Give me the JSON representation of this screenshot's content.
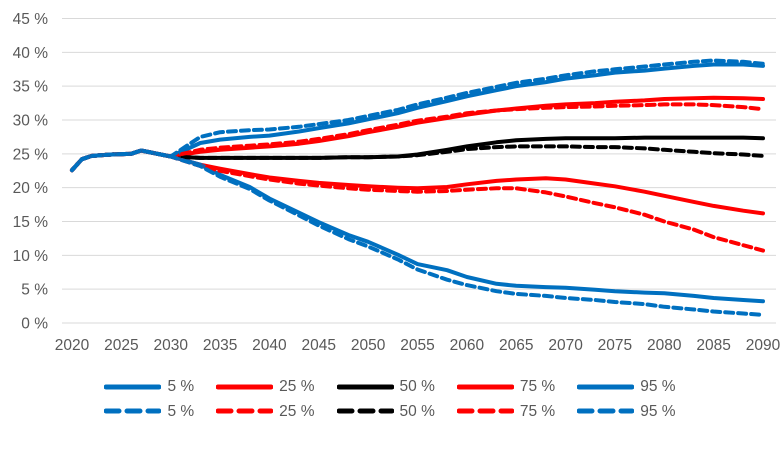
{
  "colors": {
    "blue": "#0070C0",
    "red": "#FF0000",
    "black": "#000000",
    "axis_text": "#595959",
    "gridline": "#D9D9D9",
    "background": "#FFFFFF"
  },
  "chart_data": {
    "type": "line",
    "title": "",
    "xlabel": "",
    "ylabel": "",
    "grid": true,
    "legend_position": "bottom",
    "ylim": [
      0,
      45
    ],
    "xlim": [
      2020,
      2090
    ],
    "ytick_suffix": " %",
    "yticks": [
      0,
      5,
      10,
      15,
      20,
      25,
      30,
      35,
      40,
      45
    ],
    "xticks": [
      2020,
      2025,
      2030,
      2035,
      2040,
      2045,
      2050,
      2055,
      2060,
      2065,
      2070,
      2075,
      2080,
      2085,
      2090
    ],
    "x": [
      2020,
      2021,
      2022,
      2024,
      2026,
      2027,
      2028,
      2030,
      2033,
      2035,
      2038,
      2040,
      2043,
      2045,
      2048,
      2050,
      2053,
      2055,
      2058,
      2060,
      2063,
      2065,
      2068,
      2070,
      2073,
      2075,
      2078,
      2080,
      2083,
      2085,
      2088,
      2090
    ],
    "series": [
      {
        "name": "50 %",
        "style": "solid",
        "color": "#000000",
        "values": [
          22.6,
          24.2,
          24.7,
          24.9,
          25.0,
          25.5,
          25.2,
          24.6,
          24.4,
          24.4,
          24.4,
          24.4,
          24.4,
          24.4,
          24.5,
          24.5,
          24.6,
          24.9,
          25.6,
          26.1,
          26.7,
          27.0,
          27.2,
          27.3,
          27.3,
          27.3,
          27.4,
          27.4,
          27.4,
          27.4,
          27.4,
          27.3
        ]
      },
      {
        "name": "75 %",
        "style": "solid",
        "color": "#FF0000",
        "values": [
          22.6,
          24.2,
          24.7,
          24.9,
          25.0,
          25.5,
          25.2,
          24.6,
          25.3,
          25.6,
          25.9,
          26.1,
          26.5,
          26.9,
          27.6,
          28.2,
          29.0,
          29.6,
          30.3,
          30.8,
          31.4,
          31.7,
          32.1,
          32.3,
          32.5,
          32.7,
          32.9,
          33.1,
          33.2,
          33.3,
          33.2,
          33.1
        ]
      },
      {
        "name": "25 %",
        "style": "solid",
        "color": "#FF0000",
        "values": [
          22.6,
          24.2,
          24.7,
          24.9,
          25.0,
          25.5,
          25.2,
          24.6,
          23.4,
          22.8,
          22.0,
          21.5,
          21.0,
          20.7,
          20.4,
          20.2,
          20.0,
          19.9,
          20.1,
          20.5,
          21.0,
          21.2,
          21.4,
          21.2,
          20.6,
          20.2,
          19.4,
          18.8,
          17.9,
          17.3,
          16.6,
          16.2
        ]
      },
      {
        "name": "95 %",
        "style": "solid",
        "color": "#0070C0",
        "values": [
          22.6,
          24.2,
          24.7,
          24.9,
          25.0,
          25.5,
          25.2,
          24.6,
          26.6,
          27.1,
          27.5,
          27.7,
          28.3,
          28.8,
          29.5,
          30.1,
          31.0,
          31.8,
          32.8,
          33.5,
          34.4,
          35.0,
          35.6,
          36.1,
          36.6,
          37.0,
          37.3,
          37.6,
          38.0,
          38.2,
          38.2,
          38.0
        ]
      },
      {
        "name": "5 %",
        "style": "solid",
        "color": "#0070C0",
        "values": [
          22.6,
          24.2,
          24.7,
          24.9,
          25.0,
          25.5,
          25.2,
          24.6,
          23.4,
          21.9,
          20.1,
          18.4,
          16.3,
          14.9,
          13.0,
          12.0,
          10.1,
          8.7,
          7.8,
          6.8,
          5.8,
          5.5,
          5.3,
          5.2,
          4.9,
          4.7,
          4.5,
          4.4,
          4.0,
          3.7,
          3.4,
          3.2
        ]
      },
      {
        "name": "50 %",
        "style": "dashed",
        "color": "#000000",
        "values": [
          22.6,
          24.2,
          24.7,
          24.9,
          25.0,
          25.5,
          25.2,
          24.6,
          24.4,
          24.4,
          24.4,
          24.4,
          24.4,
          24.4,
          24.5,
          24.5,
          24.6,
          24.8,
          25.3,
          25.7,
          26.0,
          26.1,
          26.1,
          26.1,
          26.0,
          26.0,
          25.8,
          25.6,
          25.3,
          25.1,
          24.9,
          24.7
        ]
      },
      {
        "name": "75 %",
        "style": "dashed",
        "color": "#FF0000",
        "values": [
          22.6,
          24.2,
          24.7,
          24.9,
          25.0,
          25.5,
          25.2,
          24.6,
          25.6,
          25.9,
          26.2,
          26.4,
          26.8,
          27.2,
          27.9,
          28.5,
          29.3,
          29.9,
          30.5,
          31.0,
          31.4,
          31.6,
          31.8,
          31.9,
          32.0,
          32.1,
          32.2,
          32.3,
          32.3,
          32.2,
          31.9,
          31.6
        ]
      },
      {
        "name": "25 %",
        "style": "dashed",
        "color": "#FF0000",
        "values": [
          22.6,
          24.2,
          24.7,
          24.9,
          25.0,
          25.5,
          25.2,
          24.6,
          23.2,
          22.5,
          21.7,
          21.2,
          20.6,
          20.3,
          19.9,
          19.7,
          19.5,
          19.4,
          19.5,
          19.7,
          19.9,
          19.9,
          19.3,
          18.7,
          17.7,
          17.1,
          16.0,
          15.0,
          13.8,
          12.7,
          11.5,
          10.7
        ]
      },
      {
        "name": "95 %",
        "style": "dashed",
        "color": "#0070C0",
        "values": [
          22.6,
          24.2,
          24.7,
          24.9,
          25.0,
          25.5,
          25.2,
          24.6,
          27.5,
          28.2,
          28.5,
          28.6,
          29.0,
          29.4,
          30.0,
          30.6,
          31.5,
          32.3,
          33.3,
          34.0,
          34.9,
          35.5,
          36.1,
          36.6,
          37.2,
          37.5,
          37.9,
          38.2,
          38.6,
          38.8,
          38.6,
          38.3
        ]
      },
      {
        "name": "5 %",
        "style": "dashed",
        "color": "#0070C0",
        "values": [
          22.6,
          24.2,
          24.7,
          24.9,
          25.0,
          25.5,
          25.2,
          24.6,
          23.2,
          21.6,
          19.8,
          18.1,
          15.9,
          14.4,
          12.4,
          11.3,
          9.4,
          7.9,
          6.4,
          5.6,
          4.7,
          4.3,
          4.0,
          3.7,
          3.4,
          3.1,
          2.8,
          2.4,
          2.0,
          1.7,
          1.4,
          1.2
        ]
      }
    ]
  },
  "legend": {
    "rows": [
      {
        "style": "solid",
        "items": [
          {
            "label": "5 %",
            "color": "#0070C0"
          },
          {
            "label": "25 %",
            "color": "#FF0000"
          },
          {
            "label": "50 %",
            "color": "#000000"
          },
          {
            "label": "75 %",
            "color": "#FF0000"
          },
          {
            "label": "95 %",
            "color": "#0070C0"
          }
        ]
      },
      {
        "style": "dashed",
        "items": [
          {
            "label": "5 %",
            "color": "#0070C0"
          },
          {
            "label": "25 %",
            "color": "#FF0000"
          },
          {
            "label": "50 %",
            "color": "#000000"
          },
          {
            "label": "75 %",
            "color": "#FF0000"
          },
          {
            "label": "95 %",
            "color": "#0070C0"
          }
        ]
      }
    ]
  }
}
